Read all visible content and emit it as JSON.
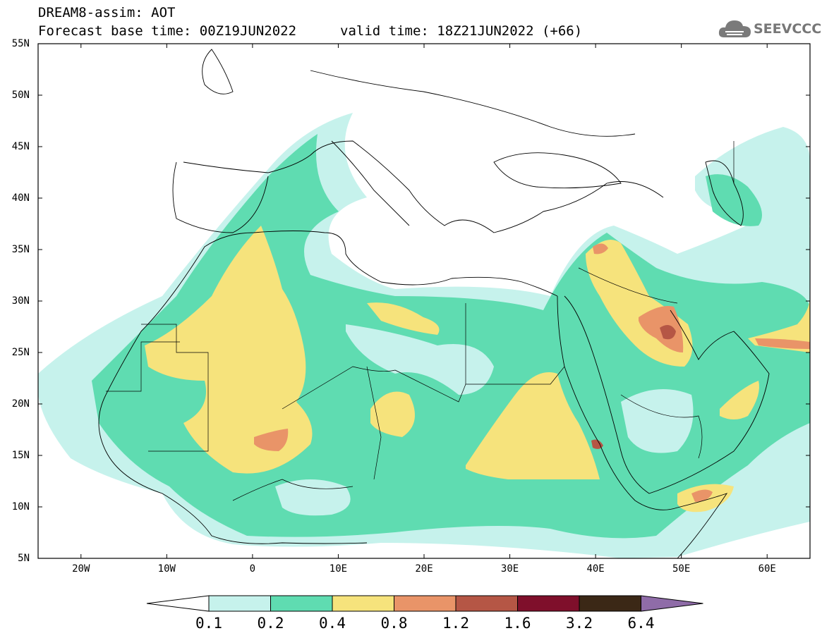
{
  "header": {
    "title": "DREAM8-assim: AOT",
    "base_time": "Forecast base time: 00Z19JUN2022",
    "valid_time": "valid time: 18Z21JUN2022 (+66)"
  },
  "logo": {
    "text": "SEEVCCC",
    "icon": "cloud-logo-icon",
    "color": "#7a7a7a"
  },
  "map": {
    "lat_labels": [
      "55N",
      "50N",
      "45N",
      "40N",
      "35N",
      "30N",
      "25N",
      "20N",
      "15N",
      "10N",
      "5N"
    ],
    "lon_labels": [
      "20W",
      "10W",
      "0",
      "10E",
      "20E",
      "30E",
      "40E",
      "50E",
      "60E"
    ],
    "lat_range": [
      5,
      55
    ],
    "lon_range": [
      -25,
      65
    ]
  },
  "colorbar": {
    "labels": [
      "0.1",
      "0.2",
      "0.4",
      "0.8",
      "1.2",
      "1.6",
      "3.2",
      "6.4"
    ],
    "colors": [
      "#c6f2ec",
      "#5fdcb1",
      "#f6e37c",
      "#e99468",
      "#b55645",
      "#7f0f2b",
      "#3b2816",
      "#8f6ca8"
    ],
    "under_color": "#ffffff"
  }
}
